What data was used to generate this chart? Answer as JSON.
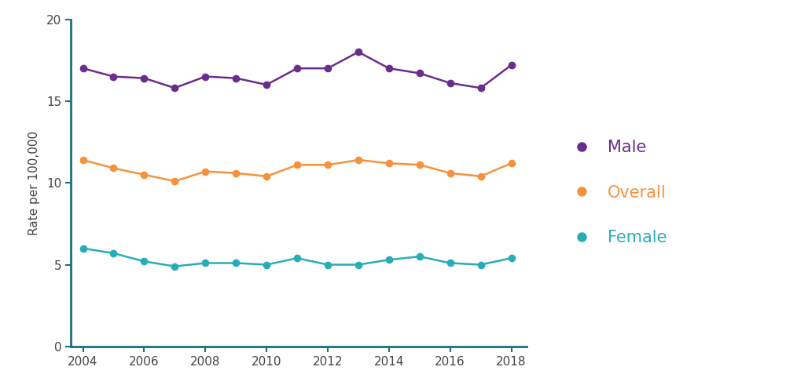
{
  "years": [
    2004,
    2005,
    2006,
    2007,
    2008,
    2009,
    2010,
    2011,
    2012,
    2013,
    2014,
    2015,
    2016,
    2017,
    2018
  ],
  "male": [
    17.0,
    16.5,
    16.4,
    15.8,
    16.5,
    16.4,
    16.0,
    17.0,
    17.0,
    18.0,
    17.0,
    16.7,
    16.1,
    15.8,
    17.2
  ],
  "overall": [
    11.4,
    10.9,
    10.5,
    10.1,
    10.7,
    10.6,
    10.4,
    11.1,
    11.1,
    11.4,
    11.2,
    11.1,
    10.6,
    10.4,
    11.2
  ],
  "female": [
    6.0,
    5.7,
    5.2,
    4.9,
    5.1,
    5.1,
    5.0,
    5.4,
    5.0,
    5.0,
    5.3,
    5.5,
    5.1,
    5.0,
    5.4
  ],
  "male_color": "#6B2D8B",
  "overall_color": "#F5923E",
  "female_color": "#29ACBA",
  "axis_color": "#1A7080",
  "ylabel": "Rate per 100,000",
  "ylim": [
    0,
    20
  ],
  "yticks": [
    0,
    5,
    10,
    15,
    20
  ],
  "xlim": [
    2003.6,
    2018.5
  ],
  "legend_labels": [
    "Male",
    "Overall",
    "Female"
  ],
  "line_width": 1.8,
  "marker_size": 6,
  "background_color": "#ffffff",
  "legend_fontsize": 15,
  "tick_fontsize": 11,
  "ylabel_fontsize": 11
}
